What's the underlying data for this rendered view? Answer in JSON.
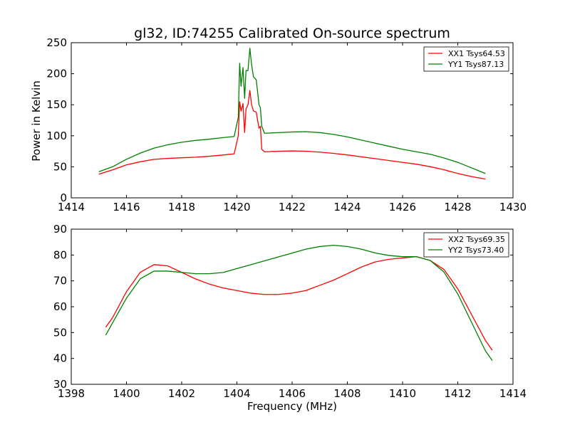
{
  "chart_data": [
    {
      "type": "line",
      "title": "gl32, ID:74255 Calibrated On-source spectrum",
      "xlabel": "",
      "ylabel": "Power in Kelvin",
      "xlim": [
        1414,
        1430
      ],
      "ylim": [
        0,
        250
      ],
      "xticks": [
        1414,
        1416,
        1418,
        1420,
        1422,
        1424,
        1426,
        1428,
        1430
      ],
      "yticks": [
        0,
        50,
        100,
        150,
        200,
        250
      ],
      "legend": "top-right",
      "grid": false,
      "series": [
        {
          "name": "XX1 Tsys64.53",
          "color": "#ff0000",
          "x": [
            1415,
            1415.5,
            1416,
            1416.5,
            1417,
            1417.5,
            1418,
            1418.5,
            1419,
            1419.5,
            1419.9,
            1420.05,
            1420.1,
            1420.15,
            1420.22,
            1420.28,
            1420.33,
            1420.4,
            1420.47,
            1420.53,
            1420.6,
            1420.7,
            1420.8,
            1420.85,
            1420.9,
            1421,
            1421.5,
            1422,
            1422.5,
            1423,
            1423.5,
            1424,
            1424.5,
            1425,
            1425.5,
            1426,
            1426.5,
            1427,
            1427.5,
            1428,
            1428.5,
            1429
          ],
          "y": [
            38,
            45,
            53,
            58,
            62,
            63.5,
            64.5,
            65.5,
            67,
            69,
            71,
            100,
            155,
            140,
            152,
            105,
            143,
            150,
            173,
            150,
            140,
            138,
            112,
            115,
            78,
            74,
            75,
            75.5,
            75,
            73.5,
            71.5,
            69,
            66,
            63,
            60,
            57,
            54,
            50,
            45,
            39,
            34,
            30
          ]
        },
        {
          "name": "YY1 Tsys87.13",
          "color": "#008000",
          "x": [
            1415,
            1415.5,
            1416,
            1416.5,
            1417,
            1417.5,
            1418,
            1418.5,
            1419,
            1419.5,
            1419.9,
            1420.05,
            1420.1,
            1420.15,
            1420.22,
            1420.28,
            1420.33,
            1420.4,
            1420.47,
            1420.53,
            1420.6,
            1420.7,
            1420.8,
            1420.85,
            1420.9,
            1421,
            1421.5,
            1422,
            1422.5,
            1423,
            1423.5,
            1424,
            1424.5,
            1425,
            1425.5,
            1426,
            1426.5,
            1427,
            1427.5,
            1428,
            1428.5,
            1429
          ],
          "y": [
            42,
            50,
            62,
            72,
            80,
            85.5,
            89.5,
            92.5,
            94.5,
            97,
            99,
            130,
            217,
            180,
            210,
            160,
            205,
            205,
            241,
            215,
            195,
            190,
            150,
            145,
            115,
            104,
            105,
            106,
            106.5,
            105,
            102,
            98,
            93,
            88,
            83,
            78,
            74,
            70,
            64,
            57,
            48,
            39
          ]
        }
      ]
    },
    {
      "type": "line",
      "title": "",
      "xlabel": "Frequency (MHz)",
      "ylabel": "",
      "xlim": [
        1398,
        1414
      ],
      "ylim": [
        30,
        90
      ],
      "xticks": [
        1398,
        1400,
        1402,
        1404,
        1406,
        1408,
        1410,
        1412,
        1414
      ],
      "yticks": [
        30,
        40,
        50,
        60,
        70,
        80,
        90
      ],
      "legend": "top-right",
      "grid": false,
      "series": [
        {
          "name": "XX2 Tsys69.35",
          "color": "#ff0000",
          "x": [
            1399.25,
            1399.5,
            1400,
            1400.5,
            1401,
            1401.5,
            1402,
            1402.5,
            1403,
            1403.5,
            1404,
            1404.5,
            1405,
            1405.5,
            1406,
            1406.5,
            1407,
            1407.5,
            1408,
            1408.5,
            1409,
            1409.5,
            1410,
            1410.5,
            1411,
            1411.5,
            1412,
            1412.5,
            1413,
            1413.25
          ],
          "y": [
            52,
            56,
            66,
            73.5,
            76.5,
            76,
            73.5,
            71,
            69,
            67.5,
            66.5,
            65.5,
            65,
            65,
            65.5,
            66.5,
            68.5,
            70.5,
            73,
            75.5,
            77.5,
            78.5,
            79,
            79.5,
            78,
            74.5,
            67,
            57,
            47,
            43
          ]
        },
        {
          "name": "YY2 Tsys73.40",
          "color": "#008000",
          "x": [
            1399.25,
            1399.5,
            1400,
            1400.5,
            1401,
            1401.5,
            1402,
            1402.5,
            1403,
            1403.5,
            1404,
            1404.5,
            1405,
            1405.5,
            1406,
            1406.5,
            1407,
            1407.5,
            1408,
            1408.5,
            1409,
            1409.5,
            1410,
            1410.5,
            1411,
            1411.5,
            1412,
            1412.5,
            1413,
            1413.25
          ],
          "y": [
            49,
            54,
            63.5,
            71,
            74,
            74,
            73.5,
            73,
            73,
            73.5,
            75,
            76.5,
            78,
            79.5,
            81,
            82.5,
            83.5,
            84,
            83.5,
            82.5,
            81,
            80,
            79.5,
            79.5,
            78,
            73.5,
            65,
            54,
            43,
            39
          ]
        }
      ]
    }
  ]
}
